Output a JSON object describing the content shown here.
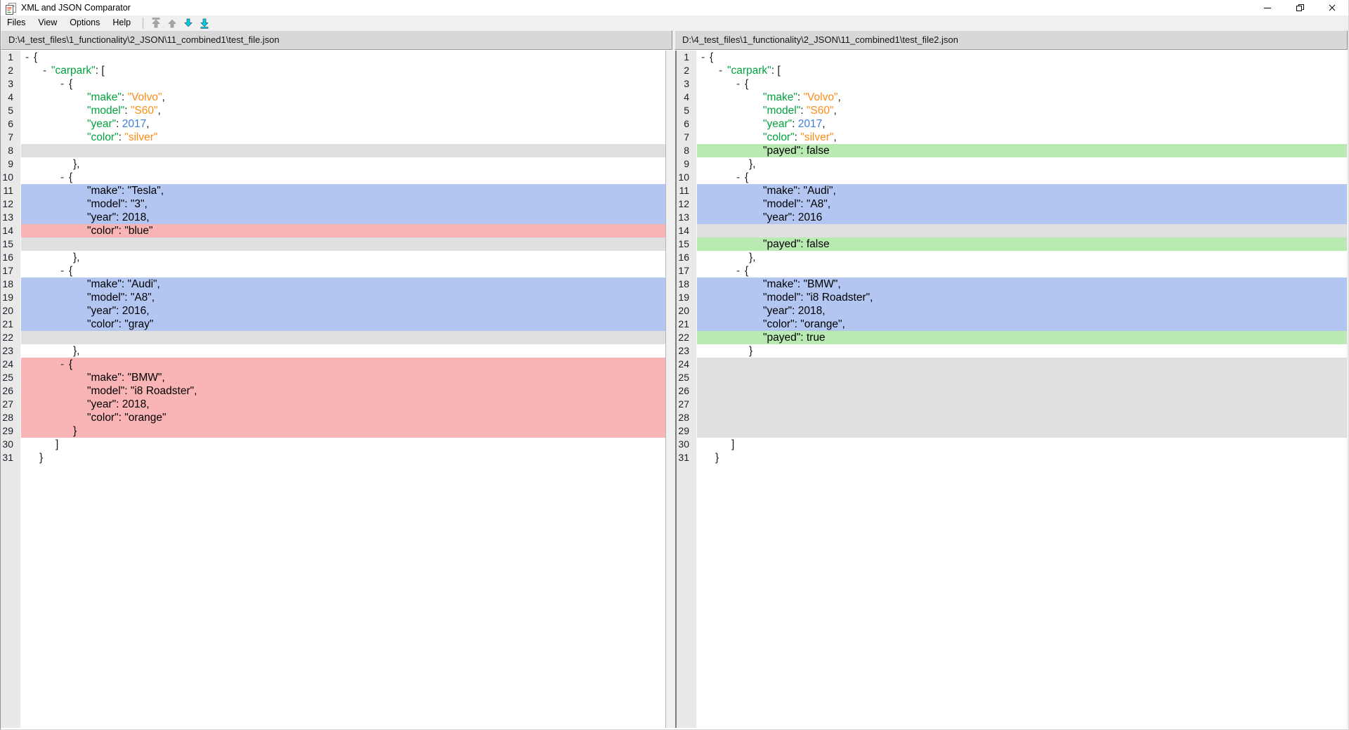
{
  "window": {
    "title": "XML and JSON Comparator",
    "controls": [
      {
        "name": "minimize"
      },
      {
        "name": "maximize"
      },
      {
        "name": "close"
      }
    ]
  },
  "menu": {
    "items": [
      "Files",
      "View",
      "Options",
      "Help"
    ]
  },
  "toolbar": {
    "buttons": [
      {
        "name": "first-difference",
        "dir": "up",
        "bar": true,
        "enabled": false
      },
      {
        "name": "previous-difference",
        "dir": "up",
        "bar": false,
        "enabled": false
      },
      {
        "name": "next-difference",
        "dir": "down",
        "bar": false,
        "enabled": true
      },
      {
        "name": "last-difference",
        "dir": "down",
        "bar": true,
        "enabled": true
      }
    ]
  },
  "colors": {
    "menubar_bg": "#f0f0f0",
    "header_bg": "#d8d8d8",
    "splitter_bg": "#f0f0f0",
    "gutter_bg": "#e9e9e9",
    "line_number_color": "#1b1e28",
    "diff_changed_bg": "#b3c6f2",
    "diff_removed_bg": "#f9b4b5",
    "diff_added_bg": "#b8eab1",
    "diff_placeholder_bg": "#e0e0e0",
    "key_color": "#00a33c",
    "string_color": "#ff8c17",
    "number_color": "#3e7ce0",
    "punct_color": "#1a1a1a",
    "toolbar_enabled": "#00d0e6",
    "toolbar_disabled": "#a6a6a6"
  },
  "left_pane": {
    "path": "D:\\4_test_files\\1_functionality\\2_JSON\\11_combined1\\test_file.json",
    "lines": [
      {
        "n": 1,
        "bg": "none",
        "ind": "m0",
        "mk": true,
        "seg": [
          [
            "{",
            "pu"
          ]
        ]
      },
      {
        "n": 2,
        "bg": "none",
        "ind": "m1",
        "mk": true,
        "seg": [
          [
            "\"carpark\"",
            "k"
          ],
          [
            ": [",
            "pu"
          ]
        ]
      },
      {
        "n": 3,
        "bg": "none",
        "ind": "m2",
        "mk": true,
        "seg": [
          [
            "{",
            "pu"
          ]
        ]
      },
      {
        "n": 4,
        "bg": "none",
        "ind": "p",
        "mk": false,
        "seg": [
          [
            "\"make\"",
            "k"
          ],
          [
            ": ",
            "pu"
          ],
          [
            "\"Volvo\"",
            "s"
          ],
          [
            ",",
            "pu"
          ]
        ]
      },
      {
        "n": 5,
        "bg": "none",
        "ind": "p",
        "mk": false,
        "seg": [
          [
            "\"model\"",
            "k"
          ],
          [
            ": ",
            "pu"
          ],
          [
            "\"S60\"",
            "s"
          ],
          [
            ",",
            "pu"
          ]
        ]
      },
      {
        "n": 6,
        "bg": "none",
        "ind": "p",
        "mk": false,
        "seg": [
          [
            "\"year\"",
            "k"
          ],
          [
            ": ",
            "pu"
          ],
          [
            "2017",
            "num"
          ],
          [
            ",",
            "pu"
          ]
        ]
      },
      {
        "n": 7,
        "bg": "none",
        "ind": "p",
        "mk": false,
        "seg": [
          [
            "\"color\"",
            "k"
          ],
          [
            ": ",
            "pu"
          ],
          [
            "\"silver\"",
            "s"
          ]
        ]
      },
      {
        "n": 8,
        "bg": "gray",
        "ind": "none",
        "mk": false,
        "seg": []
      },
      {
        "n": 9,
        "bg": "none",
        "ind": "c2",
        "mk": false,
        "seg": [
          [
            "},",
            "pu"
          ]
        ]
      },
      {
        "n": 10,
        "bg": "none",
        "ind": "m2",
        "mk": true,
        "seg": [
          [
            "{",
            "pu"
          ]
        ]
      },
      {
        "n": 11,
        "bg": "blue",
        "ind": "p",
        "mk": false,
        "seg": [
          [
            "\"make\": \"Tesla\",",
            "t"
          ]
        ]
      },
      {
        "n": 12,
        "bg": "blue",
        "ind": "p",
        "mk": false,
        "seg": [
          [
            "\"model\": \"3\",",
            "t"
          ]
        ]
      },
      {
        "n": 13,
        "bg": "blue",
        "ind": "p",
        "mk": false,
        "seg": [
          [
            "\"year\": 2018,",
            "t"
          ]
        ]
      },
      {
        "n": 14,
        "bg": "red",
        "ind": "p",
        "mk": false,
        "seg": [
          [
            "\"color\": \"blue\"",
            "t"
          ]
        ]
      },
      {
        "n": 15,
        "bg": "gray",
        "ind": "none",
        "mk": false,
        "seg": []
      },
      {
        "n": 16,
        "bg": "none",
        "ind": "c2",
        "mk": false,
        "seg": [
          [
            "},",
            "pu"
          ]
        ]
      },
      {
        "n": 17,
        "bg": "none",
        "ind": "m2",
        "mk": true,
        "seg": [
          [
            "{",
            "pu"
          ]
        ]
      },
      {
        "n": 18,
        "bg": "blue",
        "ind": "p",
        "mk": false,
        "seg": [
          [
            "\"make\": \"Audi\",",
            "t"
          ]
        ]
      },
      {
        "n": 19,
        "bg": "blue",
        "ind": "p",
        "mk": false,
        "seg": [
          [
            "\"model\": \"A8\",",
            "t"
          ]
        ]
      },
      {
        "n": 20,
        "bg": "blue",
        "ind": "p",
        "mk": false,
        "seg": [
          [
            "\"year\": 2016,",
            "t"
          ]
        ]
      },
      {
        "n": 21,
        "bg": "blue",
        "ind": "p",
        "mk": false,
        "seg": [
          [
            "\"color\": \"gray\"",
            "t"
          ]
        ]
      },
      {
        "n": 22,
        "bg": "gray",
        "ind": "none",
        "mk": false,
        "seg": []
      },
      {
        "n": 23,
        "bg": "none",
        "ind": "c2",
        "mk": false,
        "seg": [
          [
            "},",
            "pu"
          ]
        ]
      },
      {
        "n": 24,
        "bg": "red",
        "ind": "m2",
        "mk": true,
        "seg": [
          [
            "{",
            "t"
          ]
        ]
      },
      {
        "n": 25,
        "bg": "red",
        "ind": "p",
        "mk": false,
        "seg": [
          [
            "\"make\": \"BMW\",",
            "t"
          ]
        ]
      },
      {
        "n": 26,
        "bg": "red",
        "ind": "p",
        "mk": false,
        "seg": [
          [
            "\"model\": \"i8 Roadster\",",
            "t"
          ]
        ]
      },
      {
        "n": 27,
        "bg": "red",
        "ind": "p",
        "mk": false,
        "seg": [
          [
            "\"year\": 2018,",
            "t"
          ]
        ]
      },
      {
        "n": 28,
        "bg": "red",
        "ind": "p",
        "mk": false,
        "seg": [
          [
            "\"color\": \"orange\"",
            "t"
          ]
        ]
      },
      {
        "n": 29,
        "bg": "red",
        "ind": "c2",
        "mk": false,
        "seg": [
          [
            "}",
            "t"
          ]
        ]
      },
      {
        "n": 30,
        "bg": "none",
        "ind": "c1",
        "mk": false,
        "seg": [
          [
            "]",
            "pu"
          ]
        ]
      },
      {
        "n": 31,
        "bg": "none",
        "ind": "c0",
        "mk": false,
        "seg": [
          [
            "}",
            "pu"
          ]
        ]
      }
    ]
  },
  "right_pane": {
    "path": "D:\\4_test_files\\1_functionality\\2_JSON\\11_combined1\\test_file2.json",
    "lines": [
      {
        "n": 1,
        "bg": "none",
        "ind": "m0",
        "mk": true,
        "seg": [
          [
            "{",
            "pu"
          ]
        ]
      },
      {
        "n": 2,
        "bg": "none",
        "ind": "m1",
        "mk": true,
        "seg": [
          [
            "\"carpark\"",
            "k"
          ],
          [
            ": [",
            "pu"
          ]
        ]
      },
      {
        "n": 3,
        "bg": "none",
        "ind": "m2",
        "mk": true,
        "seg": [
          [
            "{",
            "pu"
          ]
        ]
      },
      {
        "n": 4,
        "bg": "none",
        "ind": "p",
        "mk": false,
        "seg": [
          [
            "\"make\"",
            "k"
          ],
          [
            ": ",
            "pu"
          ],
          [
            "\"Volvo\"",
            "s"
          ],
          [
            ",",
            "pu"
          ]
        ]
      },
      {
        "n": 5,
        "bg": "none",
        "ind": "p",
        "mk": false,
        "seg": [
          [
            "\"model\"",
            "k"
          ],
          [
            ": ",
            "pu"
          ],
          [
            "\"S60\"",
            "s"
          ],
          [
            ",",
            "pu"
          ]
        ]
      },
      {
        "n": 6,
        "bg": "none",
        "ind": "p",
        "mk": false,
        "seg": [
          [
            "\"year\"",
            "k"
          ],
          [
            ": ",
            "pu"
          ],
          [
            "2017",
            "num"
          ],
          [
            ",",
            "pu"
          ]
        ]
      },
      {
        "n": 7,
        "bg": "none",
        "ind": "p",
        "mk": false,
        "seg": [
          [
            "\"color\"",
            "k"
          ],
          [
            ": ",
            "pu"
          ],
          [
            "\"silver\"",
            "s"
          ],
          [
            ",",
            "pu"
          ]
        ]
      },
      {
        "n": 8,
        "bg": "green",
        "ind": "p",
        "mk": false,
        "seg": [
          [
            "\"payed\": false",
            "t"
          ]
        ]
      },
      {
        "n": 9,
        "bg": "none",
        "ind": "c2",
        "mk": false,
        "seg": [
          [
            "},",
            "pu"
          ]
        ]
      },
      {
        "n": 10,
        "bg": "none",
        "ind": "m2",
        "mk": true,
        "seg": [
          [
            "{",
            "pu"
          ]
        ]
      },
      {
        "n": 11,
        "bg": "blue",
        "ind": "p",
        "mk": false,
        "seg": [
          [
            "\"make\": \"Audi\",",
            "t"
          ]
        ]
      },
      {
        "n": 12,
        "bg": "blue",
        "ind": "p",
        "mk": false,
        "seg": [
          [
            "\"model\": \"A8\",",
            "t"
          ]
        ]
      },
      {
        "n": 13,
        "bg": "blue",
        "ind": "p",
        "mk": false,
        "seg": [
          [
            "\"year\": 2016",
            "t"
          ]
        ]
      },
      {
        "n": 14,
        "bg": "gray",
        "ind": "none",
        "mk": false,
        "seg": []
      },
      {
        "n": 15,
        "bg": "green",
        "ind": "p",
        "mk": false,
        "seg": [
          [
            "\"payed\": false",
            "t"
          ]
        ]
      },
      {
        "n": 16,
        "bg": "none",
        "ind": "c2",
        "mk": false,
        "seg": [
          [
            "},",
            "pu"
          ]
        ]
      },
      {
        "n": 17,
        "bg": "none",
        "ind": "m2",
        "mk": true,
        "seg": [
          [
            "{",
            "pu"
          ]
        ]
      },
      {
        "n": 18,
        "bg": "blue",
        "ind": "p",
        "mk": false,
        "seg": [
          [
            "\"make\": \"BMW\",",
            "t"
          ]
        ]
      },
      {
        "n": 19,
        "bg": "blue",
        "ind": "p",
        "mk": false,
        "seg": [
          [
            "\"model\": \"i8 Roadster\",",
            "t"
          ]
        ]
      },
      {
        "n": 20,
        "bg": "blue",
        "ind": "p",
        "mk": false,
        "seg": [
          [
            "\"year\": 2018,",
            "t"
          ]
        ]
      },
      {
        "n": 21,
        "bg": "blue",
        "ind": "p",
        "mk": false,
        "seg": [
          [
            "\"color\": \"orange\",",
            "t"
          ]
        ]
      },
      {
        "n": 22,
        "bg": "green",
        "ind": "p",
        "mk": false,
        "seg": [
          [
            "\"payed\": true",
            "t"
          ]
        ]
      },
      {
        "n": 23,
        "bg": "none",
        "ind": "c2",
        "mk": false,
        "seg": [
          [
            "}",
            "pu"
          ]
        ]
      },
      {
        "n": 24,
        "bg": "gray",
        "ind": "none",
        "mk": false,
        "seg": []
      },
      {
        "n": 25,
        "bg": "gray",
        "ind": "none",
        "mk": false,
        "seg": []
      },
      {
        "n": 26,
        "bg": "gray",
        "ind": "none",
        "mk": false,
        "seg": []
      },
      {
        "n": 27,
        "bg": "gray",
        "ind": "none",
        "mk": false,
        "seg": []
      },
      {
        "n": 28,
        "bg": "gray",
        "ind": "none",
        "mk": false,
        "seg": []
      },
      {
        "n": 29,
        "bg": "gray",
        "ind": "none",
        "mk": false,
        "seg": []
      },
      {
        "n": 30,
        "bg": "none",
        "ind": "c1",
        "mk": false,
        "seg": [
          [
            "]",
            "pu"
          ]
        ]
      },
      {
        "n": 31,
        "bg": "none",
        "ind": "c0",
        "mk": false,
        "seg": [
          [
            "}",
            "pu"
          ]
        ]
      }
    ]
  }
}
